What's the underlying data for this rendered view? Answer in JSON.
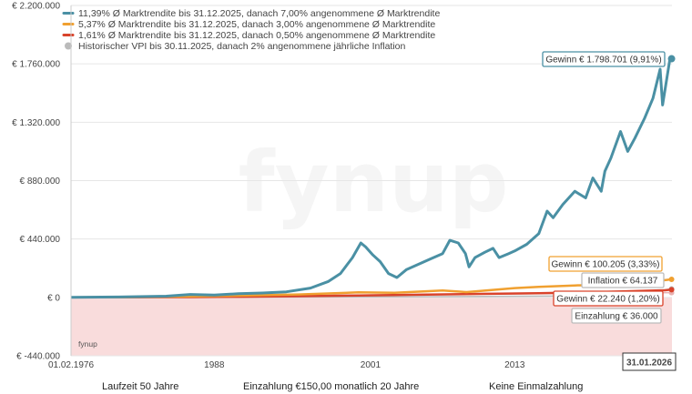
{
  "chart_data": {
    "type": "line",
    "y_ticks": [
      {
        "value": 2200000,
        "label": "€ 2.200.000"
      },
      {
        "value": 1760000,
        "label": "€ 1.760.000"
      },
      {
        "value": 1320000,
        "label": "€ 1.320.000"
      },
      {
        "value": 880000,
        "label": "€ 880.000"
      },
      {
        "value": 440000,
        "label": "€ 440.000"
      },
      {
        "value": 0,
        "label": "€ 0"
      },
      {
        "value": -440000,
        "label": "€ -440.000"
      }
    ],
    "ylim": [
      -440000,
      2200000
    ],
    "x_range": [
      1976.083,
      2026.083
    ],
    "x_ticks": [
      {
        "value": 1976.083,
        "label": "01.02.1976"
      },
      {
        "value": 1988,
        "label": "1988"
      },
      {
        "value": 2001,
        "label": "2001"
      },
      {
        "value": 2013,
        "label": "2013"
      }
    ],
    "end_date_label": "31.01.2026",
    "watermark": "fynup",
    "brand_small": "fynup",
    "legend": [
      {
        "label": "11,39% Ø Marktrendite bis 31.12.2025, danach 7,00% angenommene Ø Marktrendite",
        "color": "#4a90a4"
      },
      {
        "label": "5,37% Ø Marktrendite bis 31.12.2025, danach 3,00% angenommene Ø Marktrendite",
        "color": "#f0a030"
      },
      {
        "label": "1,61% Ø Marktrendite bis 31.12.2025, danach 0,50% angenommene Ø Marktrendite",
        "color": "#d9432b"
      },
      {
        "label": "Historischer VPI bis 30.11.2025, danach 2% angenommene jährliche Inflation",
        "color": "#bbbbbb"
      }
    ],
    "series": [
      {
        "name": "11,39% Ø Marktrendite",
        "color": "#4a90a4",
        "points": [
          [
            1976.1,
            0
          ],
          [
            1980,
            3000
          ],
          [
            1984,
            9000
          ],
          [
            1986,
            22000
          ],
          [
            1988,
            18000
          ],
          [
            1990,
            28000
          ],
          [
            1992,
            33000
          ],
          [
            1994,
            42000
          ],
          [
            1996,
            70000
          ],
          [
            1997.5,
            120000
          ],
          [
            1998.5,
            180000
          ],
          [
            1999.5,
            300000
          ],
          [
            2000.2,
            410000
          ],
          [
            2000.6,
            380000
          ],
          [
            2001.2,
            320000
          ],
          [
            2001.8,
            270000
          ],
          [
            2002.5,
            180000
          ],
          [
            2003.2,
            150000
          ],
          [
            2004,
            210000
          ],
          [
            2005,
            250000
          ],
          [
            2006,
            290000
          ],
          [
            2007,
            330000
          ],
          [
            2007.6,
            430000
          ],
          [
            2008.3,
            410000
          ],
          [
            2008.9,
            330000
          ],
          [
            2009.2,
            230000
          ],
          [
            2009.7,
            300000
          ],
          [
            2010.5,
            340000
          ],
          [
            2011.2,
            370000
          ],
          [
            2011.7,
            300000
          ],
          [
            2012.5,
            330000
          ],
          [
            2013,
            350000
          ],
          [
            2014,
            400000
          ],
          [
            2015,
            480000
          ],
          [
            2015.7,
            650000
          ],
          [
            2016.2,
            600000
          ],
          [
            2017,
            700000
          ],
          [
            2018,
            800000
          ],
          [
            2018.9,
            750000
          ],
          [
            2019.5,
            900000
          ],
          [
            2020.2,
            800000
          ],
          [
            2020.5,
            950000
          ],
          [
            2021,
            1050000
          ],
          [
            2021.8,
            1250000
          ],
          [
            2022.4,
            1100000
          ],
          [
            2023,
            1200000
          ],
          [
            2023.8,
            1350000
          ],
          [
            2024.5,
            1500000
          ],
          [
            2025.1,
            1720000
          ],
          [
            2025.3,
            1450000
          ],
          [
            2025.9,
            1790000
          ],
          [
            2026.05,
            1798701
          ]
        ]
      },
      {
        "name": "5,37% Ø Marktrendite",
        "color": "#f0a030",
        "points": [
          [
            1976.1,
            0
          ],
          [
            1980,
            1500
          ],
          [
            1986,
            7000
          ],
          [
            1990,
            13000
          ],
          [
            1995,
            22000
          ],
          [
            2000,
            38000
          ],
          [
            2003,
            35000
          ],
          [
            2007,
            52000
          ],
          [
            2009,
            40000
          ],
          [
            2013,
            70000
          ],
          [
            2015,
            80000
          ],
          [
            2018,
            90000
          ],
          [
            2021,
            98000
          ],
          [
            2022.5,
            90000
          ],
          [
            2024,
            110000
          ],
          [
            2025,
            125000
          ],
          [
            2026.05,
            136205
          ]
        ]
      },
      {
        "name": "1,61% Ø Marktrendite",
        "color": "#d9432b",
        "points": [
          [
            1976.1,
            0
          ],
          [
            1980,
            600
          ],
          [
            1986,
            2500
          ],
          [
            1990,
            5000
          ],
          [
            1995,
            9000
          ],
          [
            2000,
            14000
          ],
          [
            2005,
            20000
          ],
          [
            2010,
            26000
          ],
          [
            2015,
            32000
          ],
          [
            2020,
            40000
          ],
          [
            2024,
            50000
          ],
          [
            2025.5,
            54000
          ],
          [
            2026.05,
            58240
          ]
        ]
      },
      {
        "name": "Historischer VPI",
        "color": "#bbbbbb",
        "points": [
          [
            1976.1,
            0
          ],
          [
            1986,
            1000
          ],
          [
            1996,
            3000
          ],
          [
            2006,
            6000
          ],
          [
            2016,
            10000
          ],
          [
            2022,
            20000
          ],
          [
            2026.05,
            64137
          ]
        ]
      },
      {
        "name": "Einzahlung",
        "color": "#e8b0b0",
        "points": [
          [
            1976.1,
            0
          ],
          [
            2026.05,
            36000
          ]
        ]
      }
    ],
    "labels": [
      {
        "text": "Gewinn € 1.798.701 (9,91%)",
        "color": "#4a90a4"
      },
      {
        "text": "Gewinn € 100.205 (3,33%)",
        "color": "#f0a030"
      },
      {
        "text": "Inflation € 64.137",
        "color": "#bbbbbb"
      },
      {
        "text": "Gewinn € 22.240 (1,20%)",
        "color": "#d9432b"
      },
      {
        "text": "Einzahlung € 36.000",
        "color": "#bbbbbb"
      }
    ],
    "negative_area_color": "#f9dcdc"
  },
  "bottom": {
    "item1": "Laufzeit 50 Jahre",
    "item2": "Einzahlung €150,00 monatlich 20 Jahre",
    "item3": "Keine Einmalzahlung"
  }
}
